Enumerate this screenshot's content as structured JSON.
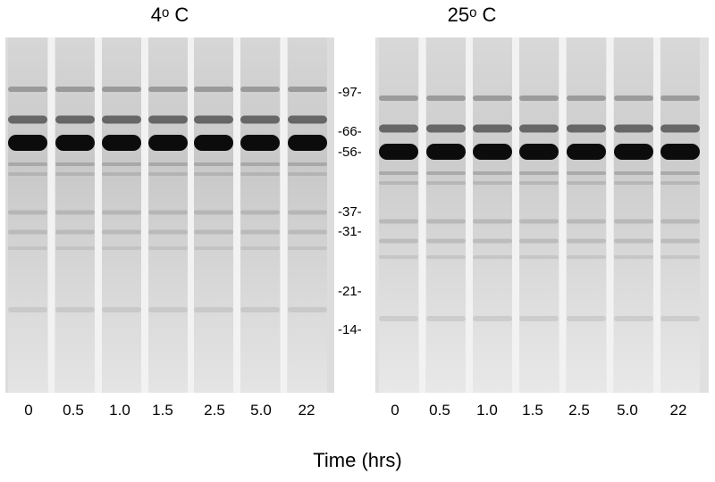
{
  "panels": [
    {
      "title": "4ᵒ C",
      "lanes": [
        "0",
        "0.5",
        "1.0",
        "1.5",
        "2.5",
        "5.0",
        "22"
      ]
    },
    {
      "title": "25ᵒ C",
      "lanes": [
        "0",
        "0.5",
        "1.0",
        "1.5",
        "2.5",
        "5.0",
        "22"
      ]
    }
  ],
  "markers": [
    "-97-",
    "-66-",
    "-56-",
    "-37-",
    "-31-",
    "-21-",
    "-14-"
  ],
  "x_axis_title": "Time (hrs)",
  "colors": {
    "background": "#ffffff",
    "gel": "#d9d9d9",
    "band_dark": "#111111",
    "lane_gap": "#f4f4f4"
  }
}
